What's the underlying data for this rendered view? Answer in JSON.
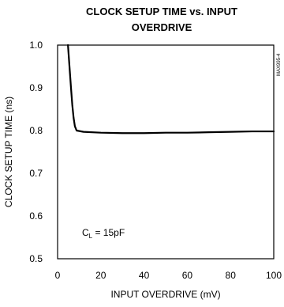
{
  "chart_data": {
    "type": "line",
    "title_lines": [
      "CLOCK SETUP TIME vs. INPUT",
      "OVERDRIVE"
    ],
    "xlabel": "INPUT OVERDRIVE (mV)",
    "ylabel": "CLOCK SETUP TIME (ns)",
    "xlim": [
      0,
      100
    ],
    "ylim": [
      0.5,
      1.0
    ],
    "x_ticks": [
      0,
      20,
      40,
      60,
      80,
      100
    ],
    "y_ticks": [
      0.5,
      0.6,
      0.7,
      0.8,
      0.9,
      1.0
    ],
    "x_tick_labels": [
      "0",
      "20",
      "40",
      "60",
      "80",
      "100"
    ],
    "y_tick_labels": [
      "0.5",
      "0.6",
      "0.7",
      "0.8",
      "0.9",
      "1.0"
    ],
    "grid": true,
    "annotation": {
      "prefix": "C",
      "subscript": "L",
      "suffix": " = 15pF"
    },
    "side_label": "MAX995-4",
    "series": [
      {
        "points": [
          [
            4.8,
            1.0
          ],
          [
            5.5,
            0.95
          ],
          [
            6.2,
            0.9
          ],
          [
            6.8,
            0.86
          ],
          [
            7.4,
            0.83
          ],
          [
            8.0,
            0.81
          ],
          [
            8.8,
            0.8
          ],
          [
            12,
            0.797
          ],
          [
            20,
            0.795
          ],
          [
            30,
            0.794
          ],
          [
            40,
            0.794
          ],
          [
            50,
            0.795
          ],
          [
            60,
            0.795
          ],
          [
            70,
            0.796
          ],
          [
            80,
            0.797
          ],
          [
            90,
            0.798
          ],
          [
            100,
            0.798
          ]
        ]
      }
    ],
    "colors": {
      "line": "#000000",
      "grid": "#000000",
      "background": "#ffffff"
    }
  }
}
